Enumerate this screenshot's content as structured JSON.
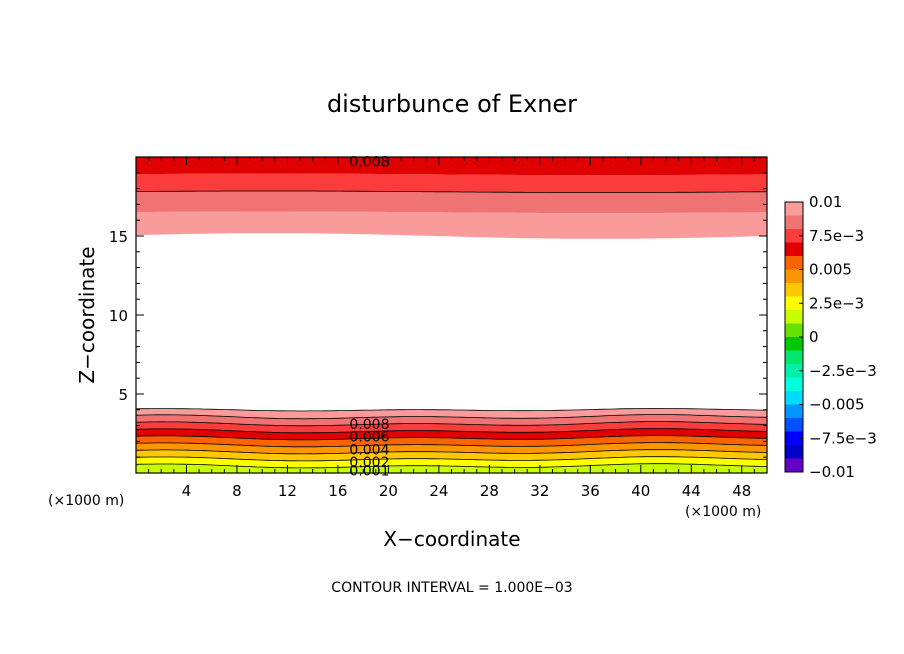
{
  "chart_data": {
    "type": "contour",
    "title": "disturbunce of Exner",
    "xlabel": "X−coordinate",
    "ylabel": "Z−coordinate",
    "x_unit_left": "(×1000 m)",
    "x_unit_right": "(×1000 m)",
    "footer": "CONTOUR INTERVAL = 1.000E−03",
    "xlim": [
      0,
      50
    ],
    "ylim": [
      0,
      20
    ],
    "x_ticks": [
      4,
      8,
      12,
      16,
      20,
      24,
      28,
      32,
      36,
      40,
      44,
      48
    ],
    "x_tick_labels": [
      "4",
      "8",
      "12",
      "16",
      "20",
      "24",
      "28",
      "32",
      "36",
      "40",
      "44",
      "48"
    ],
    "y_ticks": [
      5,
      10,
      15
    ],
    "y_tick_labels": [
      "5",
      "10",
      "15"
    ],
    "contour_interval": 0.001,
    "lower_layer": {
      "top_z": 4.0,
      "levels": [
        0.001,
        0.002,
        0.003,
        0.004,
        0.005,
        0.006,
        0.007,
        0.008,
        0.009
      ],
      "wave_amplitude": 0.15
    },
    "upper_layer": {
      "bottom_z": 15.0,
      "levels": [
        0.009,
        0.008,
        0.007
      ],
      "level_heights": [
        15.0,
        16.5,
        17.8,
        18.9
      ]
    },
    "contour_labels": [
      {
        "text": "0.008",
        "x": 18.5,
        "z": 19.7
      },
      {
        "text": "0.008",
        "x": 18.5,
        "z": 3.1
      },
      {
        "text": "0.006",
        "x": 18.5,
        "z": 2.3
      },
      {
        "text": "0.004",
        "x": 18.5,
        "z": 1.5
      },
      {
        "text": "0.002",
        "x": 18.5,
        "z": 0.7
      },
      {
        "text": "0.001",
        "x": 18.5,
        "z": 0.15
      }
    ],
    "colorbar": {
      "labels": [
        "0.01",
        "7.5e−3",
        "0.005",
        "2.5e−3",
        "0",
        "−2.5e−3",
        "−0.005",
        "−7.5e−3",
        "−0.01"
      ],
      "range": [
        -0.01,
        0.01
      ],
      "colors": [
        "#fa9b9b",
        "#f07373",
        "#fa3c3c",
        "#e10000",
        "#fa6400",
        "#fa9600",
        "#ffc800",
        "#ffff00",
        "#c8ff00",
        "#64e100",
        "#00c800",
        "#00e66e",
        "#00f0aa",
        "#00ffdc",
        "#00dcff",
        "#0096ff",
        "#0050ff",
        "#0000ff",
        "#0000c8",
        "#6400c8"
      ]
    }
  }
}
